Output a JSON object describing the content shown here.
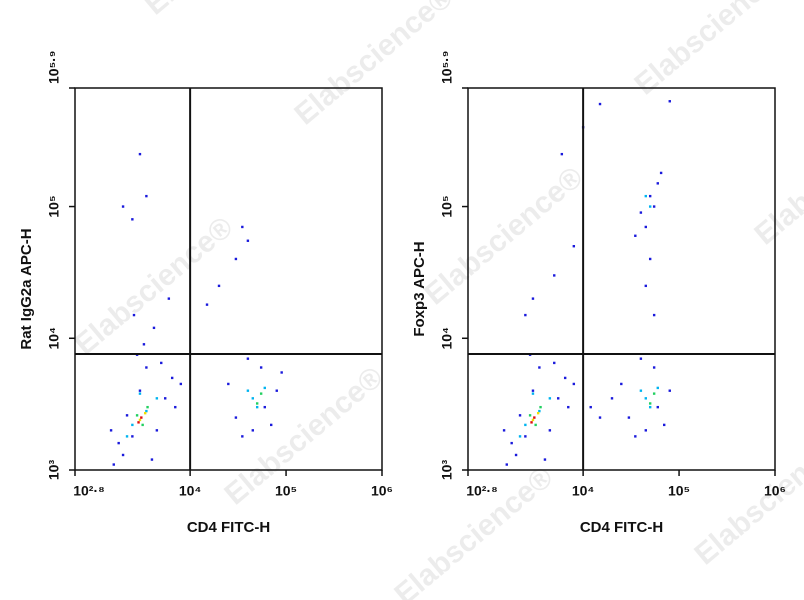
{
  "watermark": "Elabscience®",
  "chart_data": [
    {
      "type": "scatter",
      "xlabel": "CD4 FITC-H",
      "ylabel": "Rat IgG2a APC-H",
      "log_x": true,
      "log_y": true,
      "xlim": [
        631,
        1000000
      ],
      "ylim": [
        1000,
        794328
      ],
      "xticks": [
        {
          "value": 631,
          "label": "10²·⁸"
        },
        {
          "value": 10000,
          "label": "10⁴"
        },
        {
          "value": 100000,
          "label": "10⁵"
        },
        {
          "value": 1000000,
          "label": "10⁶"
        }
      ],
      "yticks": [
        {
          "value": 1000,
          "label": "10³"
        },
        {
          "value": 10000,
          "label": "10⁴"
        },
        {
          "value": 100000,
          "label": "10⁵"
        },
        {
          "value": 794328,
          "label": "10⁵·⁹"
        }
      ],
      "quadrant": {
        "x": 10000,
        "y": 7600
      },
      "series": [
        {
          "color": "#1a1adc",
          "x": [
            2000,
            2500,
            4500,
            1600,
            3000,
            5500,
            2200,
            6500,
            3500,
            1800,
            4000,
            7000,
            2800,
            5000,
            1500,
            8000,
            3300,
            4200,
            6000,
            2600,
            30000,
            45000,
            60000,
            80000,
            25000,
            55000,
            40000,
            90000,
            35000,
            70000,
            30000,
            40000,
            20000,
            35000,
            15000,
            2000,
            3000,
            3500,
            2500
          ],
          "y": [
            1300,
            1800,
            2000,
            1100,
            4000,
            3500,
            2600,
            5000,
            6000,
            1600,
            1200,
            3000,
            7500,
            6500,
            2000,
            4500,
            9000,
            12000,
            20000,
            15000,
            2500,
            2000,
            3000,
            4000,
            4500,
            6000,
            7000,
            5500,
            1800,
            2200,
            40000,
            55000,
            25000,
            70000,
            18000,
            100000,
            250000,
            120000,
            80000
          ]
        },
        {
          "color": "#00b4f0",
          "x": [
            2500,
            3500,
            4500,
            3000,
            2200,
            50000,
            40000,
            60000,
            45000
          ],
          "y": [
            2200,
            2800,
            3500,
            3800,
            1800,
            3000,
            4000,
            4200,
            3500
          ]
        },
        {
          "color": "#22d060",
          "x": [
            2800,
            3600,
            3200,
            50000,
            55000
          ],
          "y": [
            2600,
            3000,
            2200,
            3200,
            3800
          ]
        },
        {
          "color": "#f0e000",
          "x": [
            3000,
            3400
          ],
          "y": [
            2400,
            2700
          ]
        },
        {
          "color": "#e01010",
          "x": [
            3100,
            2900
          ],
          "y": [
            2500,
            2300
          ]
        }
      ]
    },
    {
      "type": "scatter",
      "xlabel": "CD4 FITC-H",
      "ylabel": "Foxp3 APC-H",
      "log_x": true,
      "log_y": true,
      "xlim": [
        631,
        1000000
      ],
      "ylim": [
        1000,
        794328
      ],
      "xticks": [
        {
          "value": 631,
          "label": "10²·⁸"
        },
        {
          "value": 10000,
          "label": "10⁴"
        },
        {
          "value": 100000,
          "label": "10⁵"
        },
        {
          "value": 1000000,
          "label": "10⁶"
        }
      ],
      "yticks": [
        {
          "value": 1000,
          "label": "10³"
        },
        {
          "value": 10000,
          "label": "10⁴"
        },
        {
          "value": 100000,
          "label": "10⁵"
        },
        {
          "value": 794328,
          "label": "10⁵·⁹"
        }
      ],
      "quadrant": {
        "x": 10000,
        "y": 7600
      },
      "series": [
        {
          "color": "#1a1adc",
          "x": [
            2000,
            2500,
            4500,
            1600,
            3000,
            5500,
            2200,
            6500,
            3500,
            1800,
            4000,
            7000,
            2800,
            5000,
            1500,
            8000,
            3000,
            5000,
            8000,
            2500,
            30000,
            45000,
            60000,
            80000,
            25000,
            55000,
            40000,
            35000,
            70000,
            12000,
            15000,
            20000,
            40000,
            50000,
            60000,
            45000,
            55000,
            35000,
            65000,
            50000,
            45000,
            55000,
            10000,
            6000,
            15000,
            80000
          ],
          "y": [
            1300,
            1800,
            2000,
            1100,
            4000,
            3500,
            2600,
            5000,
            6000,
            1600,
            1200,
            3000,
            7500,
            6500,
            2000,
            4500,
            20000,
            30000,
            50000,
            15000,
            2500,
            2000,
            3000,
            4000,
            4500,
            6000,
            7000,
            1800,
            2200,
            3000,
            2500,
            3500,
            90000,
            120000,
            150000,
            70000,
            100000,
            60000,
            180000,
            40000,
            25000,
            15000,
            400000,
            250000,
            600000,
            630000
          ]
        },
        {
          "color": "#00b4f0",
          "x": [
            2500,
            3500,
            4500,
            3000,
            2200,
            50000,
            40000,
            60000,
            45000,
            50000,
            45000
          ],
          "y": [
            2200,
            2800,
            3500,
            3800,
            1800,
            3000,
            4000,
            4200,
            3500,
            100000,
            120000
          ]
        },
        {
          "color": "#22d060",
          "x": [
            2800,
            3600,
            3200,
            50000,
            55000
          ],
          "y": [
            2600,
            3000,
            2200,
            3200,
            3800
          ]
        },
        {
          "color": "#f0e000",
          "x": [
            3000,
            3400
          ],
          "y": [
            2400,
            2700
          ]
        },
        {
          "color": "#e01010",
          "x": [
            3100,
            2900
          ],
          "y": [
            2500,
            2300
          ]
        }
      ]
    }
  ]
}
